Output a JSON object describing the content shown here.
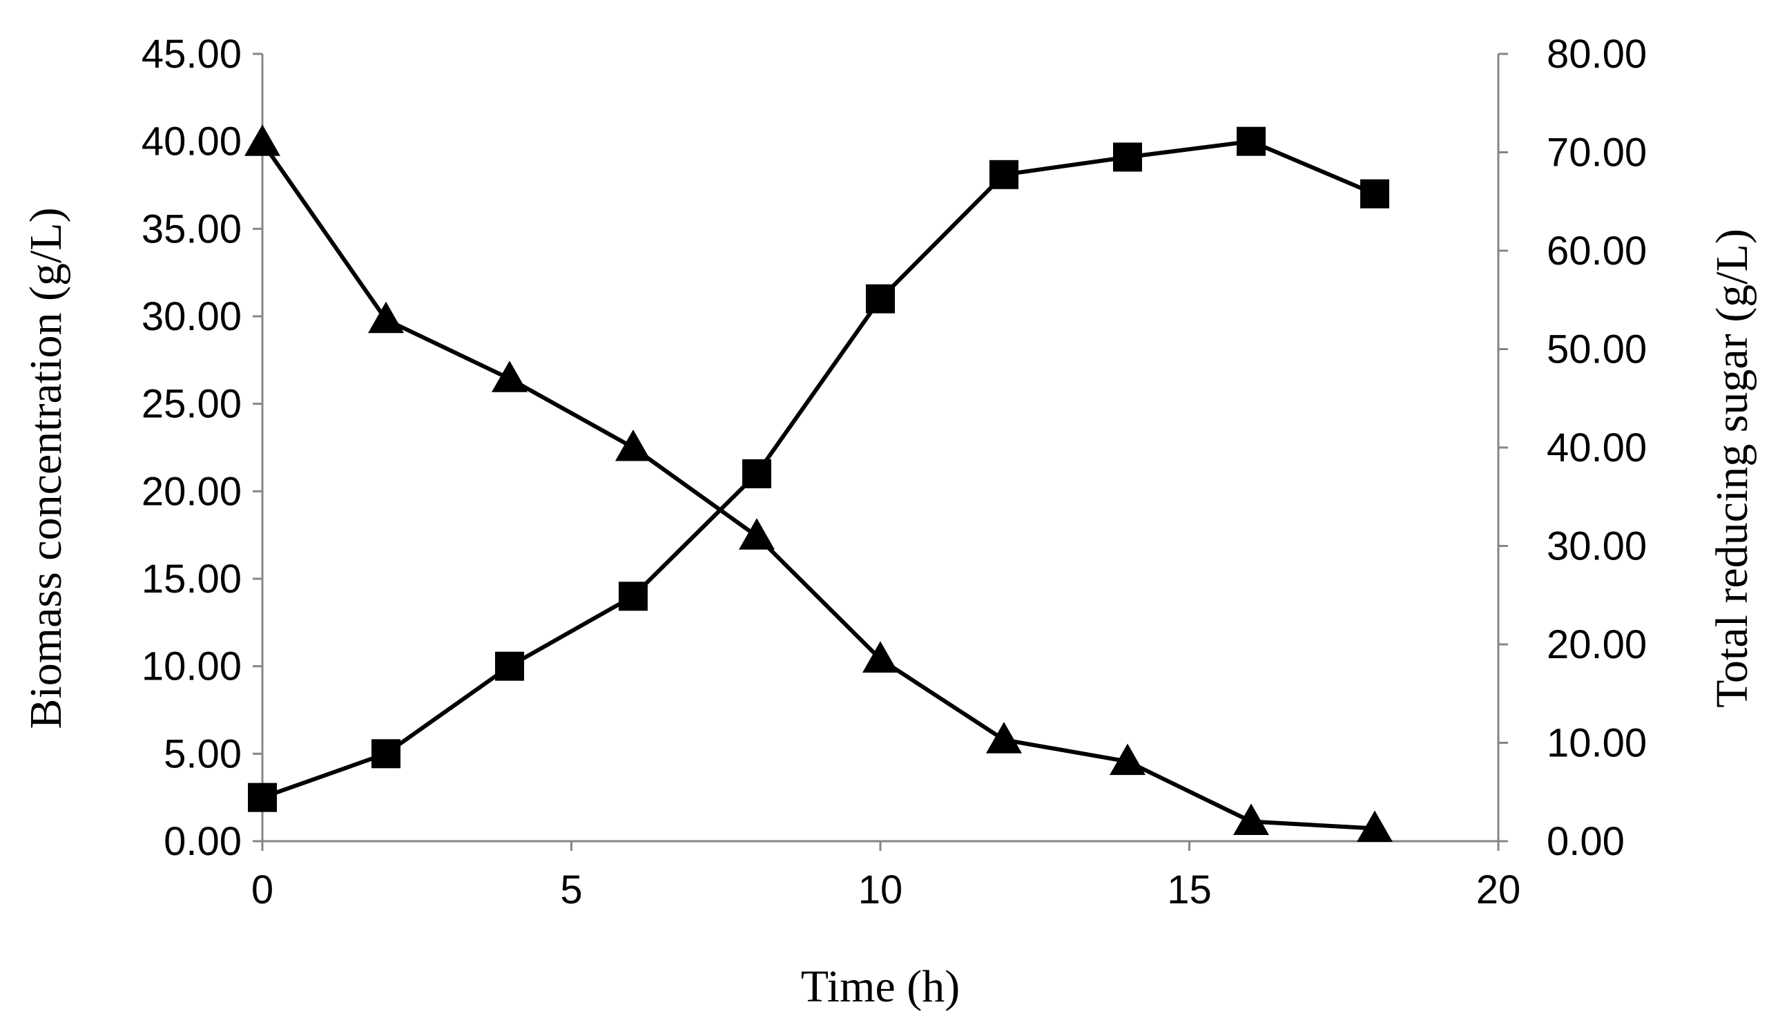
{
  "chart_data": {
    "type": "line",
    "xlabel": "Time (h)",
    "ylabel_left": "Biomass concentration (g/L)",
    "ylabel_right": "Total reducing sugar (g/L)",
    "xlim": [
      0,
      20
    ],
    "ylim_left": [
      0,
      45
    ],
    "ylim_right": [
      0,
      80
    ],
    "grid": false,
    "legend": "none",
    "x_ticks": [
      "0",
      "5",
      "10",
      "15",
      "20"
    ],
    "y_left_ticks": [
      "0.00",
      "5.00",
      "10.00",
      "15.00",
      "20.00",
      "25.00",
      "30.00",
      "35.00",
      "40.00",
      "45.00"
    ],
    "y_right_ticks": [
      "0.00",
      "10.00",
      "20.00",
      "30.00",
      "40.00",
      "50.00",
      "60.00",
      "70.00",
      "80.00"
    ],
    "series": [
      {
        "axis": "left",
        "marker": "square",
        "color": "#000000",
        "x": [
          0,
          2,
          4,
          6,
          8,
          10,
          12,
          14,
          16,
          18
        ],
        "values": [
          2.5,
          5.0,
          10.0,
          14.0,
          21.0,
          31.0,
          38.1,
          39.1,
          40.0,
          37.0
        ]
      },
      {
        "axis": "right",
        "marker": "triangle",
        "color": "#000000",
        "x": [
          0,
          2,
          4,
          6,
          8,
          10,
          12,
          14,
          16,
          18
        ],
        "values": [
          71.0,
          53.0,
          47.0,
          40.0,
          31.0,
          18.5,
          10.3,
          8.1,
          2.0,
          1.3
        ]
      }
    ]
  }
}
